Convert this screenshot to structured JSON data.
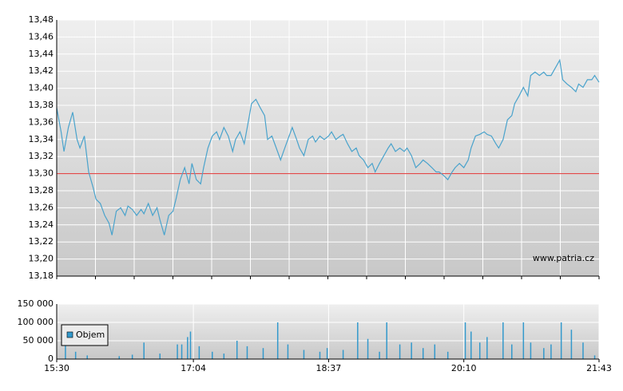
{
  "chart_data": [
    {
      "type": "line",
      "annotation": "www.patria.cz",
      "xlim": [
        930,
        1303
      ],
      "ylim": [
        13.18,
        13.48
      ],
      "yticks": [
        {
          "value": 13.18,
          "label": "13,18"
        },
        {
          "value": 13.2,
          "label": "13,20"
        },
        {
          "value": 13.22,
          "label": "13,22"
        },
        {
          "value": 13.24,
          "label": "13,24"
        },
        {
          "value": 13.26,
          "label": "13,26"
        },
        {
          "value": 13.28,
          "label": "13,28"
        },
        {
          "value": 13.3,
          "label": "13,30"
        },
        {
          "value": 13.32,
          "label": "13,32"
        },
        {
          "value": 13.34,
          "label": "13,34"
        },
        {
          "value": 13.36,
          "label": "13,36"
        },
        {
          "value": 13.38,
          "label": "13,38"
        },
        {
          "value": 13.4,
          "label": "13,40"
        },
        {
          "value": 13.42,
          "label": "13,42"
        },
        {
          "value": 13.44,
          "label": "13,44"
        },
        {
          "value": 13.46,
          "label": "13,46"
        },
        {
          "value": 13.48,
          "label": "13,48"
        }
      ],
      "grid": true,
      "reference": 13.3,
      "reference_color": "#e03030",
      "x": [
        930,
        933,
        935,
        938,
        941,
        944,
        946,
        949,
        952,
        955,
        957,
        960,
        963,
        966,
        968,
        971,
        974,
        977,
        979,
        982,
        985,
        988,
        990,
        993,
        996,
        999,
        1001,
        1004,
        1007,
        1010,
        1012,
        1015,
        1018,
        1021,
        1023,
        1026,
        1029,
        1031,
        1034,
        1037,
        1040,
        1042,
        1045,
        1048,
        1051,
        1053,
        1056,
        1059,
        1062,
        1064,
        1067,
        1070,
        1073,
        1075,
        1078,
        1081,
        1084,
        1086,
        1089,
        1092,
        1095,
        1097,
        1100,
        1103,
        1106,
        1108,
        1111,
        1114,
        1117,
        1119,
        1122,
        1125,
        1127,
        1130,
        1133,
        1136,
        1138,
        1141,
        1144,
        1147,
        1149,
        1152,
        1155,
        1158,
        1160,
        1163,
        1166,
        1169,
        1171,
        1174,
        1177,
        1180,
        1182,
        1185,
        1188,
        1191,
        1193,
        1196,
        1199,
        1202,
        1204,
        1207,
        1210,
        1213,
        1215,
        1218,
        1221,
        1224,
        1226,
        1229,
        1232,
        1234,
        1237,
        1240,
        1243,
        1245,
        1248,
        1251,
        1254,
        1256,
        1259,
        1262,
        1265,
        1267,
        1270,
        1273,
        1276,
        1278,
        1281,
        1284,
        1287,
        1289,
        1292,
        1295,
        1298,
        1300,
        1303
      ],
      "series": [
        {
          "color": "#4aa3cc",
          "values": [
            13.377,
            13.349,
            13.326,
            13.354,
            13.372,
            13.34,
            13.33,
            13.344,
            13.302,
            13.284,
            13.27,
            13.265,
            13.251,
            13.242,
            13.228,
            13.256,
            13.26,
            13.251,
            13.262,
            13.258,
            13.251,
            13.258,
            13.253,
            13.265,
            13.251,
            13.26,
            13.246,
            13.228,
            13.251,
            13.256,
            13.27,
            13.293,
            13.307,
            13.288,
            13.312,
            13.293,
            13.288,
            13.307,
            13.33,
            13.344,
            13.349,
            13.34,
            13.354,
            13.344,
            13.326,
            13.34,
            13.349,
            13.335,
            13.363,
            13.382,
            13.387,
            13.377,
            13.368,
            13.34,
            13.344,
            13.33,
            13.316,
            13.326,
            13.34,
            13.354,
            13.34,
            13.33,
            13.321,
            13.34,
            13.344,
            13.337,
            13.344,
            13.34,
            13.344,
            13.349,
            13.34,
            13.344,
            13.346,
            13.335,
            13.326,
            13.33,
            13.321,
            13.316,
            13.307,
            13.312,
            13.302,
            13.312,
            13.321,
            13.33,
            13.335,
            13.326,
            13.33,
            13.326,
            13.33,
            13.321,
            13.307,
            13.312,
            13.316,
            13.312,
            13.307,
            13.302,
            13.302,
            13.298,
            13.293,
            13.302,
            13.307,
            13.312,
            13.307,
            13.316,
            13.33,
            13.344,
            13.346,
            13.349,
            13.346,
            13.344,
            13.335,
            13.33,
            13.34,
            13.363,
            13.368,
            13.382,
            13.391,
            13.401,
            13.391,
            13.415,
            13.419,
            13.415,
            13.419,
            13.415,
            13.415,
            13.424,
            13.433,
            13.41,
            13.405,
            13.401,
            13.396,
            13.405,
            13.401,
            13.41,
            13.41,
            13.415,
            13.407
          ]
        }
      ]
    },
    {
      "type": "bar",
      "xlim": [
        930,
        1303
      ],
      "xticks": [
        {
          "value": 930,
          "label": "15:30"
        },
        {
          "value": 1024,
          "label": "17:04"
        },
        {
          "value": 1117,
          "label": "18:37"
        },
        {
          "value": 1210,
          "label": "20:10"
        },
        {
          "value": 1303,
          "label": "21:43"
        }
      ],
      "ylim": [
        0,
        150000
      ],
      "yticks": [
        0,
        {
          "value": 50000,
          "label": "50 000"
        },
        {
          "value": 100000,
          "label": "100 000"
        },
        {
          "value": 150000,
          "label": "150 000"
        }
      ],
      "grid": true,
      "x": [
        936,
        943,
        951,
        973,
        982,
        990,
        1001,
        1013,
        1016,
        1020,
        1022,
        1028,
        1037,
        1045,
        1054,
        1061,
        1072,
        1082,
        1089,
        1100,
        1111,
        1116,
        1127,
        1137,
        1144,
        1152,
        1157,
        1166,
        1174,
        1182,
        1190,
        1199,
        1211,
        1215,
        1221,
        1226,
        1237,
        1243,
        1251,
        1256,
        1265,
        1270,
        1277,
        1284,
        1292,
        1300
      ],
      "series": [
        {
          "name": "Objem",
          "color": "#3399cc",
          "values": [
            55000,
            20000,
            10000,
            8000,
            12000,
            45000,
            15000,
            40000,
            40000,
            60000,
            75000,
            35000,
            20000,
            15000,
            50000,
            35000,
            30000,
            100000,
            40000,
            25000,
            20000,
            30000,
            25000,
            100000,
            55000,
            20000,
            100000,
            40000,
            45000,
            30000,
            40000,
            20000,
            100000,
            75000,
            45000,
            60000,
            100000,
            40000,
            100000,
            45000,
            30000,
            40000,
            100000,
            80000,
            45000,
            10000
          ]
        }
      ]
    }
  ]
}
